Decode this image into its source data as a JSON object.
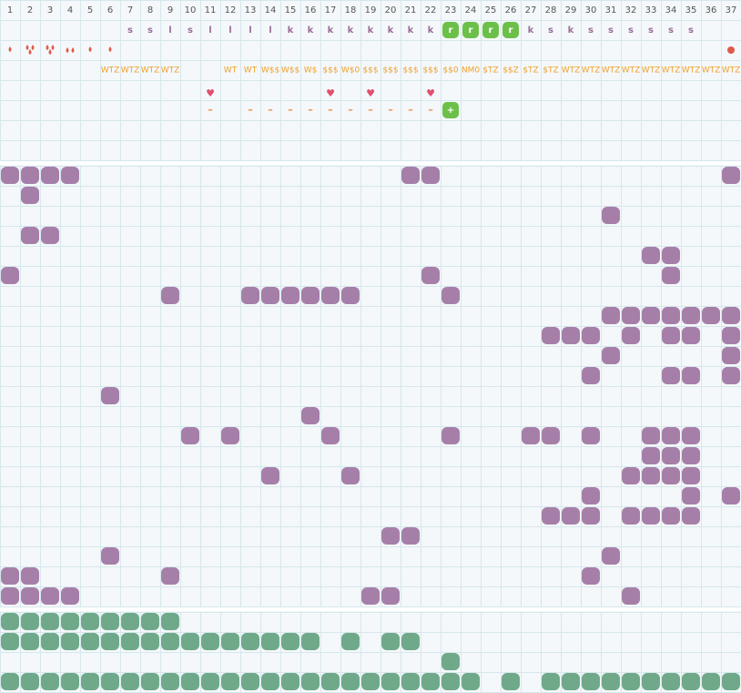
{
  "columns": [
    1,
    2,
    3,
    4,
    5,
    6,
    7,
    8,
    9,
    10,
    11,
    12,
    13,
    14,
    15,
    16,
    17,
    18,
    19,
    20,
    21,
    22,
    23,
    24,
    25,
    26,
    27,
    28,
    29,
    30,
    31,
    32,
    33,
    34,
    35,
    36,
    37
  ],
  "codes": [
    null,
    null,
    null,
    null,
    null,
    null,
    "s",
    "s",
    "l",
    "s",
    "l",
    "l",
    "l",
    "l",
    "k",
    "k",
    "k",
    "k",
    "k",
    "k",
    "k",
    "k",
    "r",
    "r",
    "r",
    "r",
    "k",
    "s",
    "k",
    "s",
    "s",
    "s",
    "s",
    "s",
    "s",
    null,
    null
  ],
  "drops": [
    1,
    3,
    3,
    2,
    1,
    1,
    null,
    null,
    null,
    null,
    null,
    null,
    null,
    null,
    null,
    null,
    null,
    null,
    null,
    null,
    null,
    null,
    null,
    null,
    null,
    null,
    null,
    null,
    null,
    null,
    null,
    null,
    null,
    null,
    null,
    null,
    "circle"
  ],
  "tags": [
    null,
    null,
    null,
    null,
    null,
    "WTZ",
    "WTZ",
    "WTZ",
    "WTZ",
    null,
    null,
    "WT",
    "WT",
    "W$$",
    "W$$",
    "W$",
    "$$$",
    "W$0",
    "$$$",
    "$$$",
    "$$$",
    "$$$",
    "$$0",
    "NM0",
    "$TZ",
    "$$Z",
    "$TZ",
    "$TZ",
    "WTZ",
    "WTZ",
    "WTZ",
    "WTZ",
    "WTZ",
    "WTZ",
    "WTZ",
    "WTZ",
    "WTZ"
  ],
  "hearts": [
    null,
    null,
    null,
    null,
    null,
    null,
    null,
    null,
    null,
    null,
    "♥",
    null,
    null,
    null,
    null,
    null,
    "♥",
    null,
    "♥",
    null,
    null,
    "♥",
    null,
    null,
    null,
    null,
    null,
    null,
    null,
    null,
    null,
    null,
    null,
    null,
    null,
    null,
    null
  ],
  "dashes": [
    null,
    null,
    null,
    null,
    null,
    null,
    null,
    null,
    null,
    null,
    "–",
    null,
    "–",
    "–",
    "–",
    "–",
    "–",
    "–",
    "–",
    "–",
    "–",
    "–",
    "+",
    null,
    null,
    null,
    null,
    null,
    null,
    null,
    null,
    null,
    null,
    null,
    null,
    null,
    null
  ],
  "purple_rows": [
    [
      1,
      2,
      3,
      4,
      21,
      22,
      37
    ],
    [
      2
    ],
    [
      31
    ],
    [
      2,
      3
    ],
    [
      33,
      34
    ],
    [
      1,
      22,
      34
    ],
    [
      9,
      13,
      14,
      15,
      16,
      17,
      18,
      23
    ],
    [
      31,
      32,
      33,
      34,
      35,
      36,
      37
    ],
    [
      28,
      29,
      30,
      32,
      34,
      35,
      37
    ],
    [
      31,
      37
    ],
    [
      30,
      34,
      35,
      37
    ],
    [
      6
    ],
    [
      16
    ],
    [
      10,
      12,
      17,
      23,
      27,
      28,
      30,
      33,
      34,
      35
    ],
    [
      33,
      34,
      35
    ],
    [
      14,
      18,
      32,
      33,
      34,
      35
    ],
    [
      30,
      35,
      37
    ],
    [
      28,
      29,
      30,
      32,
      33,
      34,
      35
    ],
    [
      20,
      21
    ],
    [
      6,
      31
    ],
    [
      1,
      2,
      9,
      30
    ],
    [
      1,
      2,
      3,
      4,
      19,
      20,
      32
    ]
  ],
  "green_rows": [
    [
      1,
      2,
      3,
      4,
      5,
      6,
      7,
      8,
      9
    ],
    [
      1,
      2,
      3,
      4,
      5,
      6,
      7,
      8,
      9,
      10,
      11,
      12,
      13,
      14,
      15,
      16,
      18,
      20,
      21
    ],
    [
      23
    ],
    [
      1,
      2,
      3,
      4,
      5,
      6,
      7,
      8,
      9,
      10,
      11,
      12,
      13,
      14,
      15,
      16,
      17,
      18,
      19,
      20,
      21,
      22,
      23,
      24,
      26,
      28,
      29,
      30,
      31,
      32,
      33,
      34,
      35,
      36,
      37
    ]
  ]
}
